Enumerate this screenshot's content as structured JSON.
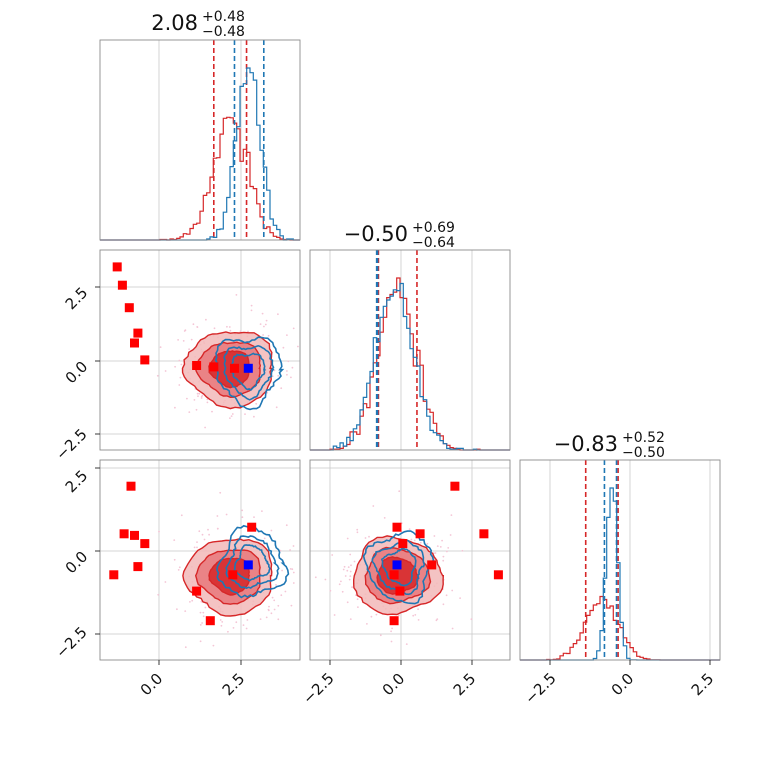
{
  "colors": {
    "red": "#d62728",
    "blue": "#1f77b4",
    "marker_red": "#ff0000",
    "marker_blue": "#0000ff",
    "fill_light": "#f2b8b9",
    "fill_mid": "#e8787b",
    "fill_dark": "#d62728"
  },
  "chart_data": [
    {
      "type": "histogram",
      "panel": "1d-param-1",
      "title": {
        "value": "2.08",
        "plus": "+0.48",
        "minus": "−0.48"
      },
      "xlim": [
        -1.7,
        4.1
      ],
      "series": [
        {
          "color": "red",
          "mean": 2.08,
          "sd": 0.5,
          "dashed_lines": [
            1.6,
            2.55
          ]
        },
        {
          "color": "blue",
          "mean": 2.6,
          "sd": 0.35,
          "dashed_lines": [
            2.2,
            3.05
          ]
        }
      ]
    },
    {
      "type": "histogram",
      "panel": "1d-param-2",
      "title": {
        "value": "−0.50",
        "plus": "+0.69",
        "minus": "−0.64"
      },
      "xlim": [
        -3.5,
        3.4
      ],
      "series": [
        {
          "color": "red",
          "mean": -0.5,
          "sd": 0.66,
          "dashed_lines": [
            -1.14,
            0.19
          ]
        },
        {
          "color": "blue",
          "mean": -0.6,
          "sd": 0.66,
          "dashed_lines": [
            -1.2,
            -1.17
          ]
        }
      ]
    },
    {
      "type": "histogram",
      "panel": "1d-param-3",
      "title": {
        "value": "−0.83",
        "plus": "+0.52",
        "minus": "−0.50"
      },
      "xlim": [
        -3.4,
        2.9
      ],
      "series": [
        {
          "color": "red",
          "mean": -0.83,
          "sd": 0.51,
          "dashed_lines": [
            -1.33,
            -0.31
          ]
        },
        {
          "color": "blue",
          "mean": -0.5,
          "sd": 0.17,
          "dashed_lines": [
            -0.74,
            -0.36
          ]
        }
      ]
    },
    {
      "type": "contour",
      "panel": "2d-param1-param2",
      "xlim": [
        -1.7,
        4.1
      ],
      "ylim": [
        -3.4,
        3.7
      ],
      "red_center": [
        2.08,
        -0.5
      ],
      "blue_center": [
        2.6,
        -0.55
      ],
      "points": [
        [
          -1.2,
          3.1
        ],
        [
          -1.05,
          2.45
        ],
        [
          -0.85,
          1.65
        ],
        [
          -0.6,
          0.75
        ],
        [
          -0.7,
          0.4
        ],
        [
          -0.4,
          -0.2
        ],
        [
          1.1,
          -0.4
        ],
        [
          1.6,
          -0.45
        ],
        [
          2.2,
          -0.5
        ]
      ],
      "blue_marker": [
        2.6,
        -0.5
      ]
    },
    {
      "type": "contour",
      "panel": "2d-param1-param3",
      "xlim": [
        -1.7,
        4.1
      ],
      "ylim": [
        -3.4,
        2.7
      ],
      "red_center": [
        2.08,
        -0.83
      ],
      "blue_center": [
        2.7,
        -0.45
      ],
      "points": [
        [
          -1.3,
          -0.8
        ],
        [
          -1.0,
          0.45
        ],
        [
          -0.7,
          0.4
        ],
        [
          -0.8,
          1.9
        ],
        [
          -0.4,
          0.15
        ],
        [
          -0.6,
          -0.55
        ],
        [
          1.1,
          -1.3
        ],
        [
          1.5,
          -2.2
        ],
        [
          2.7,
          0.65
        ],
        [
          2.15,
          -0.8
        ]
      ],
      "blue_marker": [
        2.6,
        -0.5
      ]
    },
    {
      "type": "contour",
      "panel": "2d-param2-param3",
      "xlim": [
        -3.5,
        3.4
      ],
      "ylim": [
        -3.4,
        2.7
      ],
      "red_center": [
        -0.5,
        -0.83
      ],
      "blue_center": [
        -0.4,
        -0.55
      ],
      "points": [
        [
          -0.5,
          0.65
        ],
        [
          -0.3,
          0.15
        ],
        [
          0.3,
          0.45
        ],
        [
          1.5,
          1.9
        ],
        [
          2.5,
          0.45
        ],
        [
          3.0,
          -0.8
        ],
        [
          0.7,
          -0.5
        ],
        [
          -0.6,
          -0.8
        ],
        [
          -0.4,
          -1.3
        ],
        [
          -0.6,
          -2.2
        ]
      ],
      "blue_marker": [
        -0.5,
        -0.5
      ]
    }
  ],
  "tick_labels": {
    "p1_x": [
      "0.0",
      "2.5"
    ],
    "p2_x": [
      "−2.5",
      "0.0",
      "2.5"
    ],
    "p3_x": [
      "−2.5",
      "0.0",
      "2.5"
    ],
    "p2_y": [
      "2.5",
      "0.0",
      "−2.5"
    ],
    "p3_y": [
      "2.5",
      "0.0",
      "−2.5"
    ]
  }
}
